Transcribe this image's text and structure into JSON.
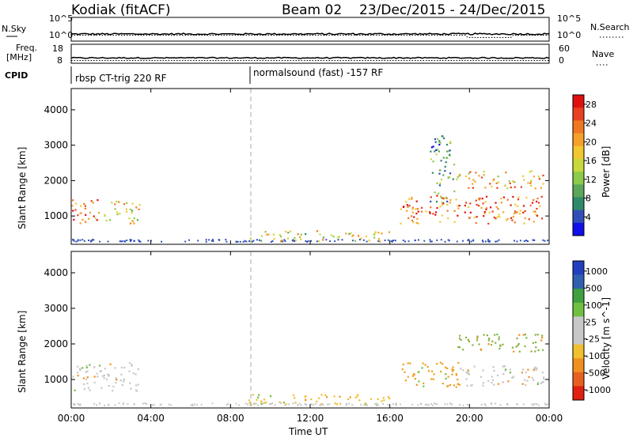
{
  "header": {
    "radar": "Kodiak (fitACF)",
    "beam": "Beam 02",
    "dates": "23/Dec/2015 - 24/Dec/2015"
  },
  "top_panels": {
    "nsky_label": "N.Sky",
    "nsky_ticks": [
      "10^5",
      "10^0"
    ],
    "nsearch_label": "N.Search",
    "nsearch_ticks": [
      "10^5",
      "10^0"
    ],
    "freq_label_line1": "Freq.",
    "freq_label_line2": "[MHz]",
    "freq_ticks": [
      "18",
      "8"
    ],
    "nave_label": "Nave",
    "nave_ticks": [
      "60",
      "0"
    ],
    "cpid_label": "CPID",
    "cpid_segments": [
      {
        "name": "rbsp CT-trig 220 RF",
        "start_hour": 0
      },
      {
        "name": "normalsound (fast) -157 RF",
        "start_hour": 9
      }
    ]
  },
  "chart_data": [
    {
      "type": "heatmap",
      "panel": "power",
      "xlabel": "",
      "ylabel": "Slant Range [km]",
      "xlim": [
        0,
        24
      ],
      "ylim": [
        200,
        4600
      ],
      "yticks": [
        "1000",
        "2000",
        "3000",
        "4000"
      ],
      "colorbar_label": "Power [dB]",
      "colorbar_ticks": [
        "4",
        "8",
        "12",
        "16",
        "20",
        "24",
        "28"
      ],
      "colorbar_colors": [
        "#1010e8",
        "#3050b8",
        "#2e8a6a",
        "#5aa75a",
        "#8ccb4a",
        "#c8d83a",
        "#f2c830",
        "#f4a02a",
        "#f07822",
        "#e84020",
        "#e01010"
      ],
      "scatter_regions": [
        {
          "t0": 0.0,
          "t1": 1.4,
          "r0": 750,
          "r1": 1500,
          "level": 0.75
        },
        {
          "t0": 1.6,
          "t1": 3.4,
          "r0": 800,
          "r1": 1500,
          "level": 0.6
        },
        {
          "t0": 8.9,
          "t1": 16.0,
          "r0": 300,
          "r1": 600,
          "level": 0.5
        },
        {
          "t0": 16.5,
          "t1": 23.8,
          "r0": 800,
          "r1": 1600,
          "level": 0.8
        },
        {
          "t0": 19.3,
          "t1": 23.8,
          "r0": 1800,
          "r1": 2300,
          "level": 0.65
        },
        {
          "t0": 18.0,
          "t1": 19.2,
          "r0": 1400,
          "r1": 3300,
          "level": 0.3
        }
      ]
    },
    {
      "type": "heatmap",
      "panel": "velocity",
      "xlabel": "Time UT",
      "ylabel": "Slant Range [km]",
      "xlim": [
        0,
        24
      ],
      "ylim": [
        200,
        4600
      ],
      "xticks": [
        "00:00",
        "04:00",
        "08:00",
        "12:00",
        "16:00",
        "20:00",
        "00:00"
      ],
      "yticks": [
        "1000",
        "2000",
        "3000",
        "4000"
      ],
      "colorbar_label": "Velocity [m s^-1]",
      "colorbar_ticks": [
        "1000",
        "500",
        "100",
        "25",
        "-25",
        "-100",
        "-500",
        "-1000"
      ],
      "colorbar_colors": [
        "#2040c0",
        "#3060b0",
        "#40a040",
        "#70c040",
        "#c8c8c8",
        "#c8c8c8",
        "#f0c030",
        "#f09020",
        "#e86020",
        "#e02010"
      ],
      "scatter_regions": [
        {
          "t0": 0.0,
          "t1": 3.4,
          "r0": 700,
          "r1": 1500,
          "color": "#c8c8c8"
        },
        {
          "t0": 8.9,
          "t1": 16.0,
          "r0": 300,
          "r1": 600,
          "color": "#f0c030"
        },
        {
          "t0": 16.5,
          "t1": 19.5,
          "r0": 800,
          "r1": 1500,
          "color": "#f0a020"
        },
        {
          "t0": 19.5,
          "t1": 23.8,
          "r0": 800,
          "r1": 1400,
          "color": "#c8c8c8"
        },
        {
          "t0": 19.3,
          "t1": 23.8,
          "r0": 1800,
          "r1": 2300,
          "color": "#8ab040"
        }
      ]
    }
  ]
}
